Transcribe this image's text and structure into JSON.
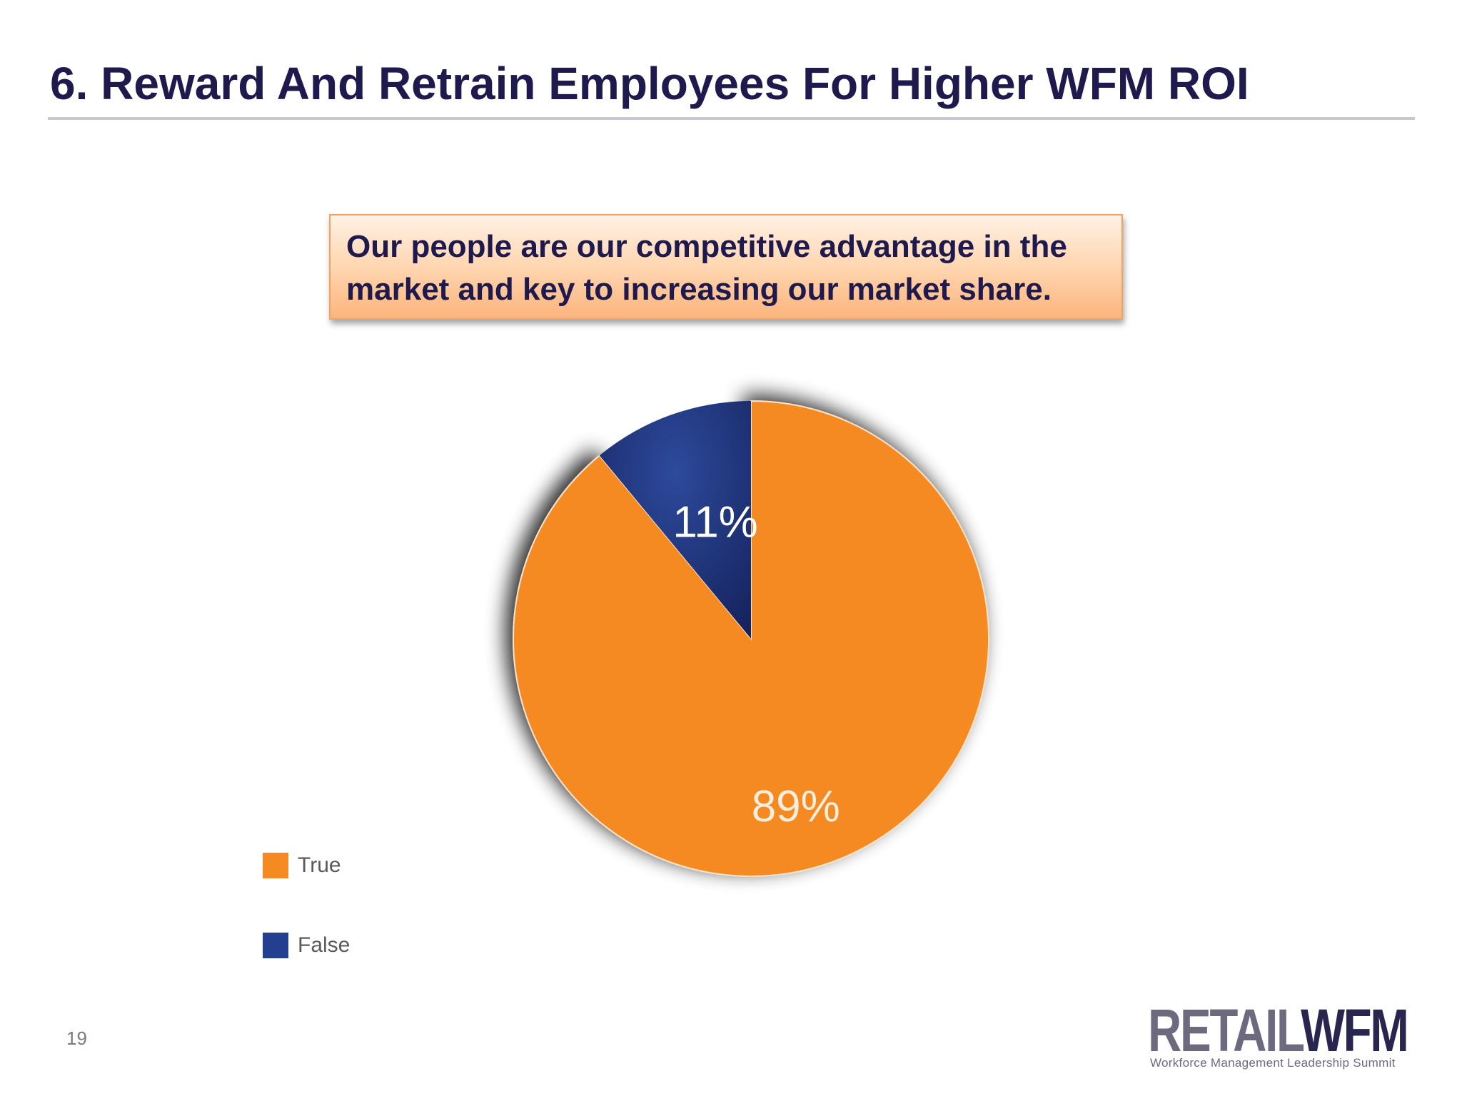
{
  "slide": {
    "title": "6. Reward And Retrain Employees For Higher WFM ROI",
    "page_number": "19"
  },
  "callout": {
    "line1": "Our people are our competitive advantage in the",
    "line2": "market and key to increasing our market share."
  },
  "chart_data": {
    "type": "pie",
    "title": "",
    "categories": [
      "True",
      "False"
    ],
    "values": [
      89,
      11
    ],
    "labels": [
      "89%",
      "11%"
    ],
    "colors": [
      "#f58a22",
      "#243f8f"
    ],
    "start_angle_deg": -90,
    "legend_position": "bottom-left",
    "exploded_slice": "True"
  },
  "logo": {
    "retail": "RETAIL",
    "wfm": "WFM",
    "tagline": "Workforce Management Leadership Summit"
  }
}
